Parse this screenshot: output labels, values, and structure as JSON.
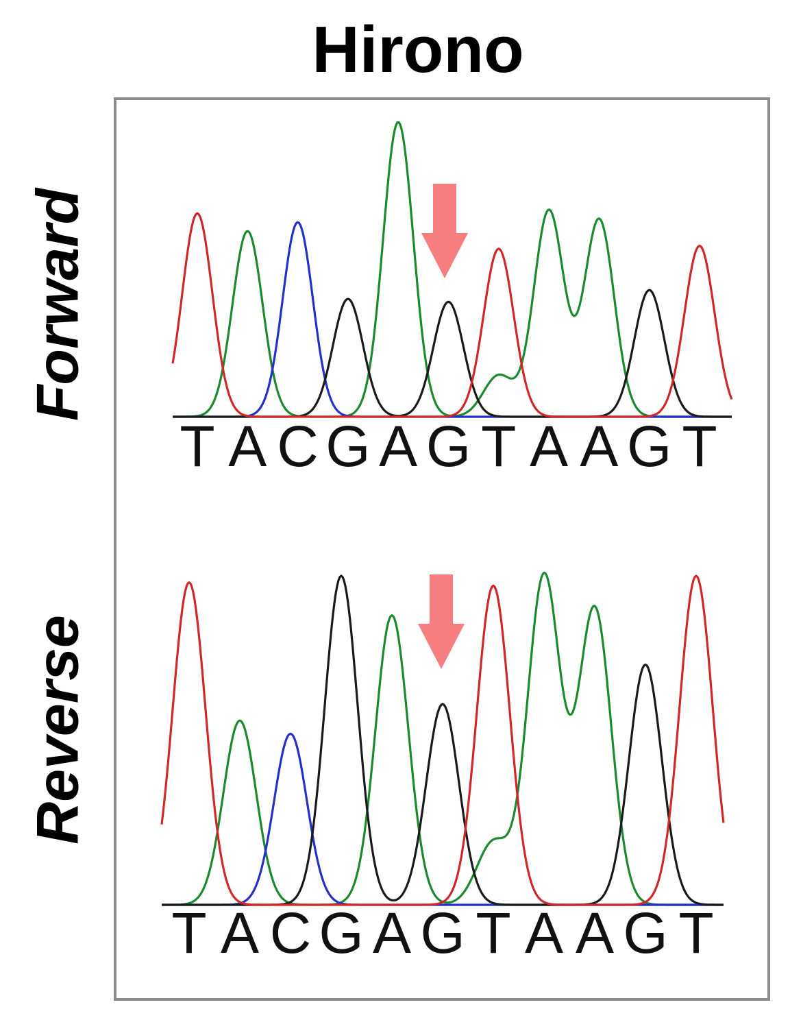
{
  "title": "Hirono",
  "colors": {
    "A": "#1b8a2e",
    "C": "#2430c8",
    "G": "#1a1a1a",
    "T": "#d02828",
    "arrow": "#f77e7e",
    "frame": "#8c8c8c"
  },
  "chart_data": [
    {
      "type": "line",
      "name": "Forward",
      "label": "Forward",
      "sequence": [
        "T",
        "A",
        "C",
        "G",
        "A",
        "G",
        "T",
        "A",
        "A",
        "G",
        "T"
      ],
      "peak_heights": [
        0.69,
        0.63,
        0.66,
        0.4,
        1.0,
        0.39,
        0.57,
        0.7,
        0.67,
        0.43,
        0.58
      ],
      "secondary_peaks": [
        {
          "position": 6,
          "base": "A",
          "height": 0.14
        }
      ],
      "arrow_position": 6
    },
    {
      "type": "line",
      "name": "Reverse",
      "label": "Reverse",
      "sequence": [
        "T",
        "A",
        "C",
        "G",
        "A",
        "G",
        "T",
        "A",
        "A",
        "G",
        "T"
      ],
      "peak_heights": [
        0.98,
        0.56,
        0.52,
        1.0,
        0.88,
        0.61,
        0.97,
        1.0,
        0.9,
        0.73,
        1.0
      ],
      "secondary_peaks": [
        {
          "position": 6,
          "base": "A",
          "height": 0.19
        }
      ],
      "arrow_position": 6
    }
  ]
}
